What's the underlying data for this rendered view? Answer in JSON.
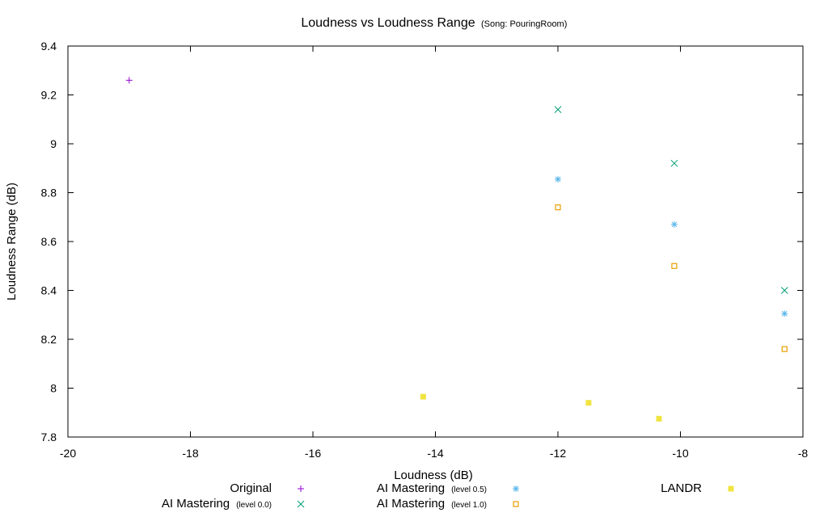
{
  "chart_data": {
    "type": "scatter",
    "title": "Loudness vs Loudness Range",
    "subtitle": "(Song: PouringRoom)",
    "xlabel": "Loudness (dB)",
    "ylabel": "Loudness Range (dB)",
    "xlim": [
      -20,
      -8
    ],
    "ylim": [
      7.8,
      9.4
    ],
    "xticks": [
      -20,
      -18,
      -16,
      -14,
      -12,
      -10,
      -8
    ],
    "yticks": [
      7.8,
      8.0,
      8.2,
      8.4,
      8.6,
      8.8,
      9.0,
      9.2,
      9.4
    ],
    "xtick_labels": [
      "-20",
      "-18",
      "-16",
      "-14",
      "-12",
      "-10",
      "-8"
    ],
    "ytick_labels": [
      "7.8",
      "8",
      "8.2",
      "8.4",
      "8.6",
      "8.8",
      "9",
      "9.2",
      "9.4"
    ],
    "grid": false,
    "legend_position": "bottom",
    "series": [
      {
        "name": "Original",
        "sub": "",
        "marker": "plus",
        "color": "#9400d3",
        "points": [
          [
            -19.0,
            9.26
          ]
        ]
      },
      {
        "name": "AI Mastering",
        "sub": "(level 0.0)",
        "marker": "cross",
        "color": "#009e73",
        "points": [
          [
            -12.0,
            9.14
          ],
          [
            -10.1,
            8.92
          ],
          [
            -8.3,
            8.4
          ]
        ]
      },
      {
        "name": "AI Mastering",
        "sub": "(level 0.5)",
        "marker": "asterisk",
        "color": "#56b4e9",
        "points": [
          [
            -12.0,
            8.855
          ],
          [
            -10.1,
            8.67
          ],
          [
            -8.3,
            8.305
          ]
        ]
      },
      {
        "name": "AI Mastering",
        "sub": "(level 1.0)",
        "marker": "open-square",
        "color": "#e69f00",
        "points": [
          [
            -12.0,
            8.74
          ],
          [
            -10.1,
            8.5
          ],
          [
            -8.3,
            8.16
          ]
        ]
      },
      {
        "name": "LANDR",
        "sub": "",
        "marker": "filled-square",
        "color": "#f0e442",
        "points": [
          [
            -14.2,
            7.965
          ],
          [
            -11.5,
            7.94
          ],
          [
            -10.35,
            7.875
          ]
        ]
      }
    ]
  }
}
